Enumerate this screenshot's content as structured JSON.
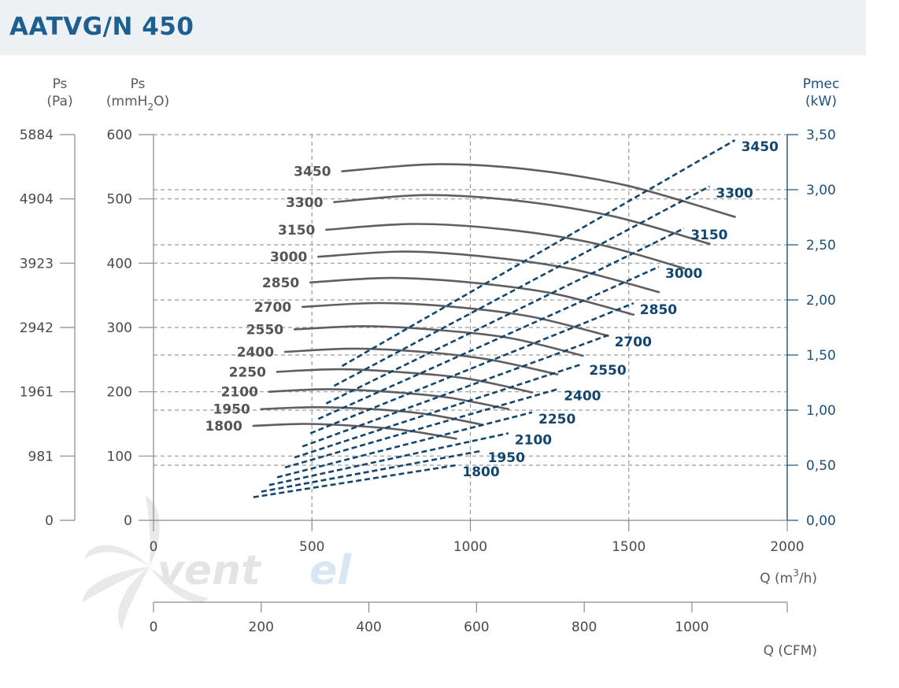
{
  "title": "AATVG/N 450",
  "axes": {
    "left_pa_label": [
      "Ps",
      "(Pa)"
    ],
    "left_mm_label": [
      "Ps",
      "(mmH",
      "2",
      "O)"
    ],
    "right_label": [
      "Pmec",
      "(kW)"
    ],
    "x_m3h_label": [
      "Q (m",
      "3",
      "/h)"
    ],
    "x_cfm_label": "Q (CFM)",
    "pa_ticks": [
      "0",
      "981",
      "1961",
      "2942",
      "3923",
      "4904",
      "5884"
    ],
    "mm_ticks": [
      "0",
      "100",
      "200",
      "300",
      "400",
      "500",
      "600"
    ],
    "kw_ticks": [
      "0,00",
      "0,50",
      "1,00",
      "1,50",
      "2,00",
      "2,50",
      "3,00",
      "3,50"
    ],
    "m3h_ticks": [
      "0",
      "500",
      "1000",
      "1500",
      "2000"
    ],
    "cfm_ticks": [
      "0",
      "200",
      "400",
      "600",
      "800",
      "1000"
    ]
  },
  "logo": {
    "text_dark": "vent",
    "text_light": "el"
  },
  "chart_data": {
    "type": "line",
    "x_unit": "m3/h",
    "xlim": [
      0,
      2000
    ],
    "ylim_pressure_mmH2O": [
      0,
      600
    ],
    "ylim_power_kW": [
      0,
      3.5
    ],
    "x2lim_cfm": [
      0,
      1177
    ],
    "grid": true,
    "pressure_curves": [
      {
        "name": "3450",
        "x": [
          595,
          900,
          1200,
          1500,
          1835
        ],
        "y": [
          543,
          554,
          545,
          520,
          472
        ]
      },
      {
        "name": "3300",
        "x": [
          570,
          860,
          1150,
          1450,
          1755
        ],
        "y": [
          495,
          506,
          497,
          473,
          430
        ]
      },
      {
        "name": "3150",
        "x": [
          545,
          820,
          1100,
          1390,
          1675
        ],
        "y": [
          452,
          461,
          453,
          431,
          392
        ]
      },
      {
        "name": "3000",
        "x": [
          520,
          790,
          1050,
          1320,
          1595
        ],
        "y": [
          410,
          418,
          410,
          391,
          355
        ]
      },
      {
        "name": "2850",
        "x": [
          495,
          750,
          1000,
          1260,
          1515
        ],
        "y": [
          370,
          377,
          370,
          353,
          320
        ]
      },
      {
        "name": "2700",
        "x": [
          470,
          710,
          950,
          1190,
          1435
        ],
        "y": [
          332,
          338,
          332,
          317,
          287
        ]
      },
      {
        "name": "2550",
        "x": [
          445,
          670,
          900,
          1130,
          1355
        ],
        "y": [
          297,
          302,
          296,
          283,
          256
        ]
      },
      {
        "name": "2400",
        "x": [
          415,
          630,
          850,
          1060,
          1275
        ],
        "y": [
          262,
          267,
          262,
          250,
          227
        ]
      },
      {
        "name": "2250",
        "x": [
          390,
          590,
          795,
          995,
          1195
        ],
        "y": [
          231,
          235,
          230,
          220,
          199
        ]
      },
      {
        "name": "2100",
        "x": [
          365,
          550,
          740,
          930,
          1120
        ],
        "y": [
          200,
          204,
          200,
          191,
          173
        ]
      },
      {
        "name": "1950",
        "x": [
          340,
          510,
          690,
          865,
          1035
        ],
        "y": [
          173,
          176,
          173,
          165,
          149
        ]
      },
      {
        "name": "1800",
        "x": [
          315,
          475,
          635,
          795,
          955
        ],
        "y": [
          147,
          150,
          147,
          140,
          127
        ]
      }
    ],
    "power_curves_kW": [
      {
        "name": "3450",
        "x": [
          595,
          1835
        ],
        "y": [
          1.4,
          3.45
        ]
      },
      {
        "name": "3300",
        "x": [
          570,
          1755
        ],
        "y": [
          1.22,
          3.03
        ]
      },
      {
        "name": "3150",
        "x": [
          545,
          1675
        ],
        "y": [
          1.06,
          2.65
        ]
      },
      {
        "name": "3000",
        "x": [
          520,
          1595
        ],
        "y": [
          0.92,
          2.3
        ]
      },
      {
        "name": "2850",
        "x": [
          495,
          1515
        ],
        "y": [
          0.79,
          1.97
        ]
      },
      {
        "name": "2700",
        "x": [
          470,
          1435
        ],
        "y": [
          0.67,
          1.68
        ]
      },
      {
        "name": "2550",
        "x": [
          445,
          1355
        ],
        "y": [
          0.57,
          1.42
        ]
      },
      {
        "name": "2400",
        "x": [
          415,
          1275
        ],
        "y": [
          0.48,
          1.19
        ]
      },
      {
        "name": "2250",
        "x": [
          390,
          1195
        ],
        "y": [
          0.39,
          0.98
        ]
      },
      {
        "name": "2100",
        "x": [
          365,
          1120
        ],
        "y": [
          0.32,
          0.79
        ]
      },
      {
        "name": "1950",
        "x": [
          340,
          1035
        ],
        "y": [
          0.26,
          0.63
        ]
      },
      {
        "name": "1800",
        "x": [
          315,
          955
        ],
        "y": [
          0.21,
          0.5
        ]
      }
    ]
  }
}
